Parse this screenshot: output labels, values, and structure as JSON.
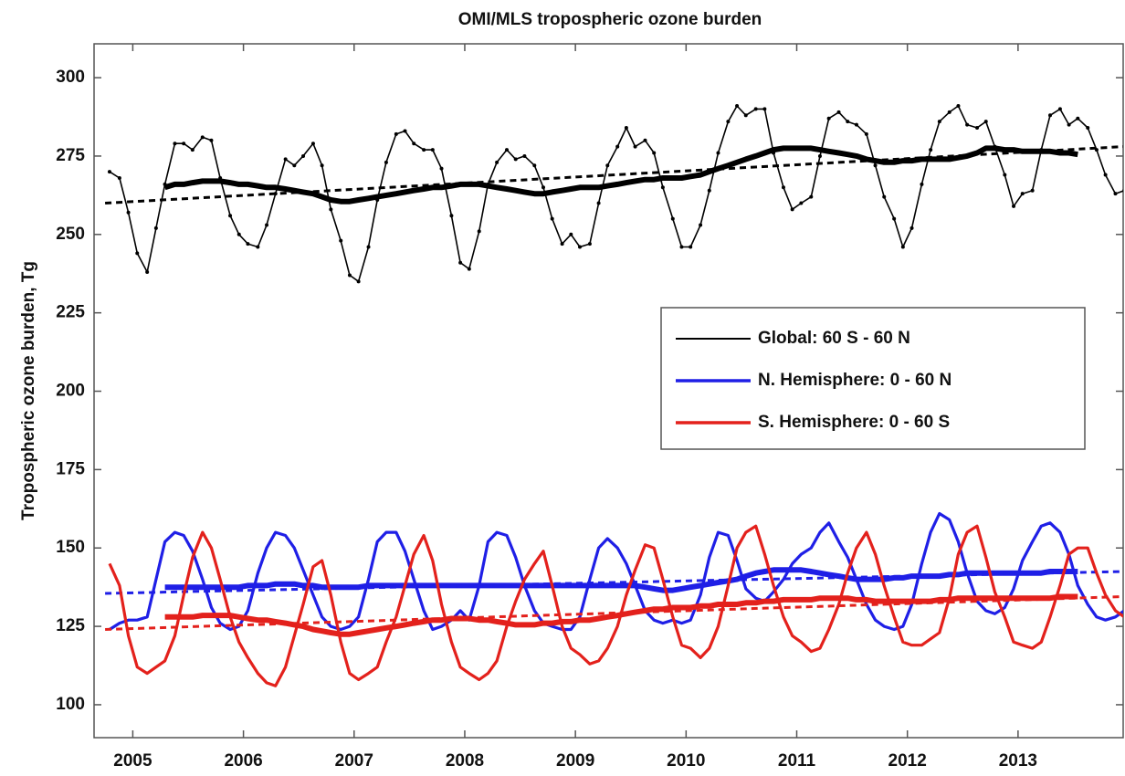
{
  "chart_data": {
    "type": "line",
    "title": "OMI/MLS tropospheric ozone burden",
    "y_label": "Tropospheric ozone burden, Tg",
    "xlim": [
      2004.65,
      2013.95
    ],
    "ylim": [
      89.5,
      310.8
    ],
    "xticks": [
      2005,
      2006,
      2007,
      2008,
      2009,
      2010,
      2011,
      2012,
      2013
    ],
    "yticks": [
      100,
      125,
      150,
      175,
      200,
      225,
      250,
      275,
      300
    ],
    "legend": "right",
    "x": [
      2004.79,
      2004.88,
      2004.96,
      2005.04,
      2005.13,
      2005.21,
      2005.29,
      2005.38,
      2005.46,
      2005.54,
      2005.63,
      2005.71,
      2005.79,
      2005.88,
      2005.96,
      2006.04,
      2006.13,
      2006.21,
      2006.29,
      2006.38,
      2006.46,
      2006.54,
      2006.63,
      2006.71,
      2006.79,
      2006.88,
      2006.96,
      2007.04,
      2007.13,
      2007.21,
      2007.29,
      2007.38,
      2007.46,
      2007.54,
      2007.63,
      2007.71,
      2007.79,
      2007.88,
      2007.96,
      2008.04,
      2008.13,
      2008.21,
      2008.29,
      2008.38,
      2008.46,
      2008.54,
      2008.63,
      2008.71,
      2008.79,
      2008.88,
      2008.96,
      2009.04,
      2009.13,
      2009.21,
      2009.29,
      2009.38,
      2009.46,
      2009.54,
      2009.63,
      2009.71,
      2009.79,
      2009.88,
      2009.96,
      2010.04,
      2010.13,
      2010.21,
      2010.29,
      2010.38,
      2010.46,
      2010.54,
      2010.63,
      2010.71,
      2010.79,
      2010.88,
      2010.96,
      2011.04,
      2011.13,
      2011.21,
      2011.29,
      2011.38,
      2011.46,
      2011.54,
      2011.63,
      2011.71,
      2011.79,
      2011.88,
      2011.96,
      2012.04,
      2012.13,
      2012.21,
      2012.29,
      2012.38,
      2012.46,
      2012.54,
      2012.63,
      2012.71,
      2012.79,
      2012.88,
      2012.96,
      2013.04,
      2013.13,
      2013.21,
      2013.29,
      2013.38,
      2013.46,
      2013.54,
      2013.63,
      2013.71,
      2013.79,
      2013.88,
      2013.96
    ],
    "trend_x": [
      2004.75,
      2013.95
    ],
    "series": [
      {
        "name": "Global: 60 S - 60 N",
        "color": "#000000",
        "values": [
          270,
          268,
          257,
          244,
          238,
          252,
          266,
          279,
          279,
          277,
          281,
          280,
          268,
          256,
          250,
          247,
          246,
          253,
          263,
          274,
          272,
          275,
          279,
          272,
          258,
          248,
          237,
          235,
          246,
          261,
          273,
          282,
          283,
          279,
          277,
          277,
          271,
          256,
          241,
          239,
          251,
          266,
          273,
          277,
          274,
          275,
          272,
          265,
          255,
          247,
          250,
          246,
          247,
          260,
          272,
          278,
          284,
          278,
          280,
          276,
          265,
          255,
          246,
          246,
          253,
          264,
          276,
          286,
          291,
          288,
          290,
          290,
          276,
          265,
          258,
          260,
          262,
          275,
          287,
          289,
          286,
          285,
          282,
          272,
          262,
          255,
          246,
          252,
          266,
          277,
          286,
          289,
          291,
          285,
          284,
          286,
          278,
          269,
          259,
          263,
          264,
          277,
          288,
          290,
          285,
          287,
          284,
          277,
          269,
          263,
          264
        ],
        "running_mean": [
          null,
          null,
          null,
          null,
          null,
          null,
          265,
          266,
          266,
          266.5,
          267,
          267,
          267,
          266.5,
          266,
          266,
          265.5,
          265,
          265,
          264.5,
          264,
          263.5,
          263,
          262,
          261,
          260.5,
          260.5,
          261,
          261.5,
          262,
          262.5,
          263,
          263.5,
          264,
          264.5,
          265,
          265,
          265.5,
          266,
          266,
          266,
          265.5,
          265,
          264.5,
          264,
          263.5,
          263,
          263,
          263.5,
          264,
          264.5,
          265,
          265,
          265,
          265.5,
          266,
          266.5,
          267,
          267.5,
          267.5,
          268,
          268,
          268,
          268.5,
          269,
          270,
          271,
          272,
          273,
          274,
          275,
          276,
          277,
          277.5,
          277.5,
          277.5,
          277.5,
          277,
          276.5,
          276,
          275.5,
          275,
          274,
          273.5,
          273,
          273,
          273.5,
          273.5,
          274,
          274,
          274,
          274,
          274.5,
          275,
          276,
          277.5,
          277.5,
          277,
          277,
          276.5,
          276.5,
          276.5,
          276.5,
          276,
          276,
          275.5,
          null,
          null,
          null,
          null,
          null
        ],
        "trend": [
          260,
          278
        ]
      },
      {
        "name": "N. Hemisphere: 0 - 60 N",
        "color": "#1f1fe6",
        "values": [
          124,
          126,
          127,
          127,
          128,
          140,
          152,
          155,
          154,
          149,
          140,
          131,
          126,
          124,
          125,
          130,
          142,
          150,
          155,
          154,
          150,
          143,
          135,
          128,
          125,
          124,
          125,
          128,
          140,
          152,
          155,
          155,
          149,
          140,
          130,
          124,
          125,
          127,
          130,
          127,
          138,
          152,
          155,
          154,
          147,
          138,
          130,
          126,
          125,
          124,
          124,
          128,
          140,
          150,
          153,
          150,
          145,
          138,
          130,
          127,
          126,
          127,
          126,
          127,
          135,
          147,
          155,
          154,
          146,
          137,
          134,
          133,
          136,
          140,
          145,
          148,
          150,
          155,
          158,
          152,
          147,
          140,
          132,
          127,
          125,
          124,
          125,
          132,
          145,
          155,
          161,
          159,
          152,
          142,
          133,
          130,
          129,
          131,
          137,
          146,
          152,
          157,
          158,
          155,
          148,
          138,
          132,
          128,
          127,
          128,
          130
        ],
        "running_mean": [
          null,
          null,
          null,
          null,
          null,
          null,
          137.5,
          137.5,
          137.5,
          137.5,
          137.5,
          137.5,
          137.5,
          137.5,
          137.5,
          138,
          138,
          138,
          138.5,
          138.5,
          138.5,
          138,
          138,
          137.5,
          137.5,
          137.5,
          137.5,
          137.5,
          138,
          138,
          138,
          138,
          138,
          138,
          138,
          138,
          138,
          138,
          138,
          138,
          138,
          138,
          138,
          138,
          138,
          138,
          138,
          138,
          138,
          138,
          138,
          138,
          138,
          138,
          138,
          138,
          138,
          138,
          137.5,
          137,
          136.5,
          136.5,
          137,
          137.5,
          138,
          138.5,
          139,
          139.5,
          140,
          141,
          142,
          142.5,
          143,
          143,
          143,
          143,
          142.5,
          142,
          141.5,
          141,
          140.5,
          140,
          140,
          140,
          140,
          140.5,
          140.5,
          141,
          141,
          141,
          141,
          141.5,
          141.5,
          142,
          142,
          142,
          142,
          142,
          142,
          142,
          142,
          142,
          142.5,
          142.5,
          142.5,
          142.5,
          null,
          null,
          null,
          null,
          null
        ],
        "trend": [
          135.5,
          142.5
        ]
      },
      {
        "name": "S. Hemisphere:  0 - 60 S",
        "color": "#e3211c",
        "values": [
          145,
          138,
          122,
          112,
          110,
          112,
          114,
          122,
          135,
          147,
          155,
          150,
          140,
          128,
          120,
          115,
          110,
          107,
          106,
          112,
          122,
          132,
          144,
          146,
          135,
          120,
          110,
          108,
          110,
          112,
          120,
          128,
          138,
          148,
          154,
          146,
          132,
          120,
          112,
          110,
          108,
          110,
          114,
          125,
          133,
          140,
          145,
          149,
          138,
          125,
          118,
          116,
          113,
          114,
          118,
          125,
          135,
          143,
          151,
          150,
          140,
          128,
          119,
          118,
          115,
          118,
          125,
          138,
          150,
          155,
          157,
          148,
          138,
          128,
          122,
          120,
          117,
          118,
          124,
          132,
          142,
          150,
          155,
          148,
          138,
          128,
          120,
          119,
          119,
          121,
          123,
          134,
          148,
          155,
          157,
          147,
          136,
          128,
          120,
          119,
          118,
          120,
          128,
          138,
          148,
          150,
          150,
          142,
          135,
          130,
          128
        ],
        "running_mean": [
          null,
          null,
          null,
          null,
          null,
          null,
          128,
          128,
          128,
          128,
          128.5,
          128.5,
          128.5,
          128.5,
          128,
          127.5,
          127,
          127,
          126.5,
          126,
          125.5,
          125,
          124,
          123.5,
          123,
          122.5,
          122.5,
          123,
          123.5,
          124,
          124.5,
          125,
          125.5,
          126,
          126.5,
          127,
          127,
          127.5,
          127.5,
          127.5,
          127,
          127,
          126.5,
          126,
          125.5,
          125.5,
          125.5,
          126,
          126,
          126.5,
          126.5,
          127,
          127,
          127.5,
          128,
          128.5,
          129,
          129.5,
          130,
          130.5,
          130.5,
          131,
          131,
          131,
          131.5,
          131.5,
          132,
          132,
          132,
          132.5,
          132.5,
          133,
          133,
          133.5,
          133.5,
          133.5,
          133.5,
          134,
          134,
          134,
          134,
          133.5,
          133.5,
          133,
          133,
          133,
          133,
          133,
          133,
          133,
          133.5,
          133.5,
          134,
          134,
          134,
          134,
          134,
          134,
          134,
          134,
          134,
          134,
          134,
          134.5,
          134.5,
          134.5,
          null,
          null,
          null,
          null,
          null
        ],
        "trend": [
          124,
          134.5
        ]
      }
    ]
  }
}
